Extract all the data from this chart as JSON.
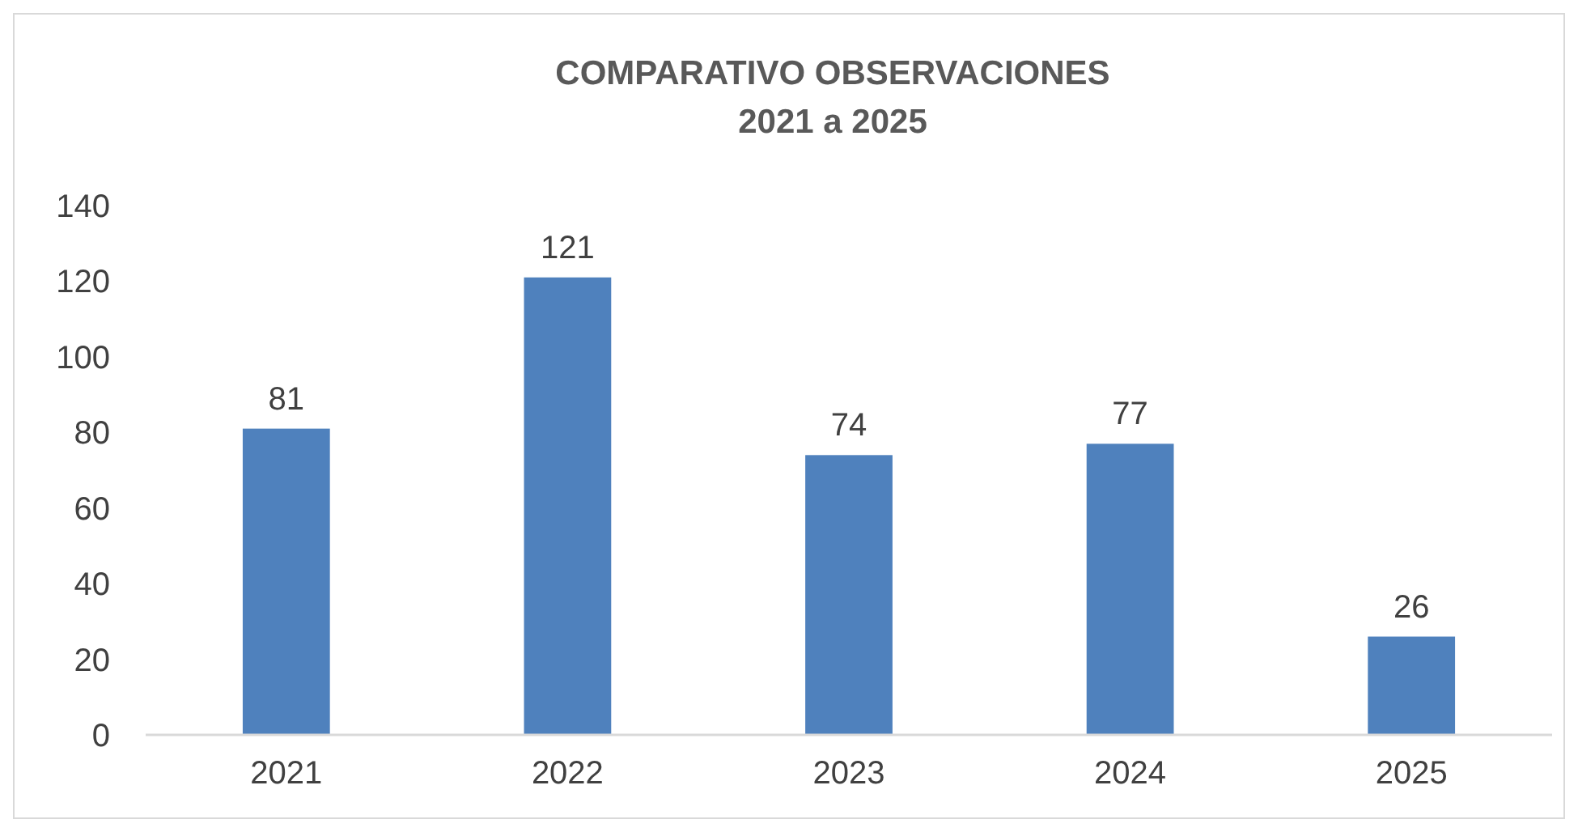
{
  "chart_data": {
    "type": "bar",
    "title": "COMPARATIVO OBSERVACIONES\n2021 a 2025",
    "categories": [
      "2021",
      "2022",
      "2023",
      "2024",
      "2025"
    ],
    "values": [
      81,
      121,
      74,
      77,
      26
    ],
    "color": "#4f81bd",
    "ylim": [
      0,
      140
    ],
    "yticks": [
      0,
      20,
      40,
      60,
      80,
      100,
      120,
      140
    ],
    "grid": false,
    "data_labels": true
  }
}
